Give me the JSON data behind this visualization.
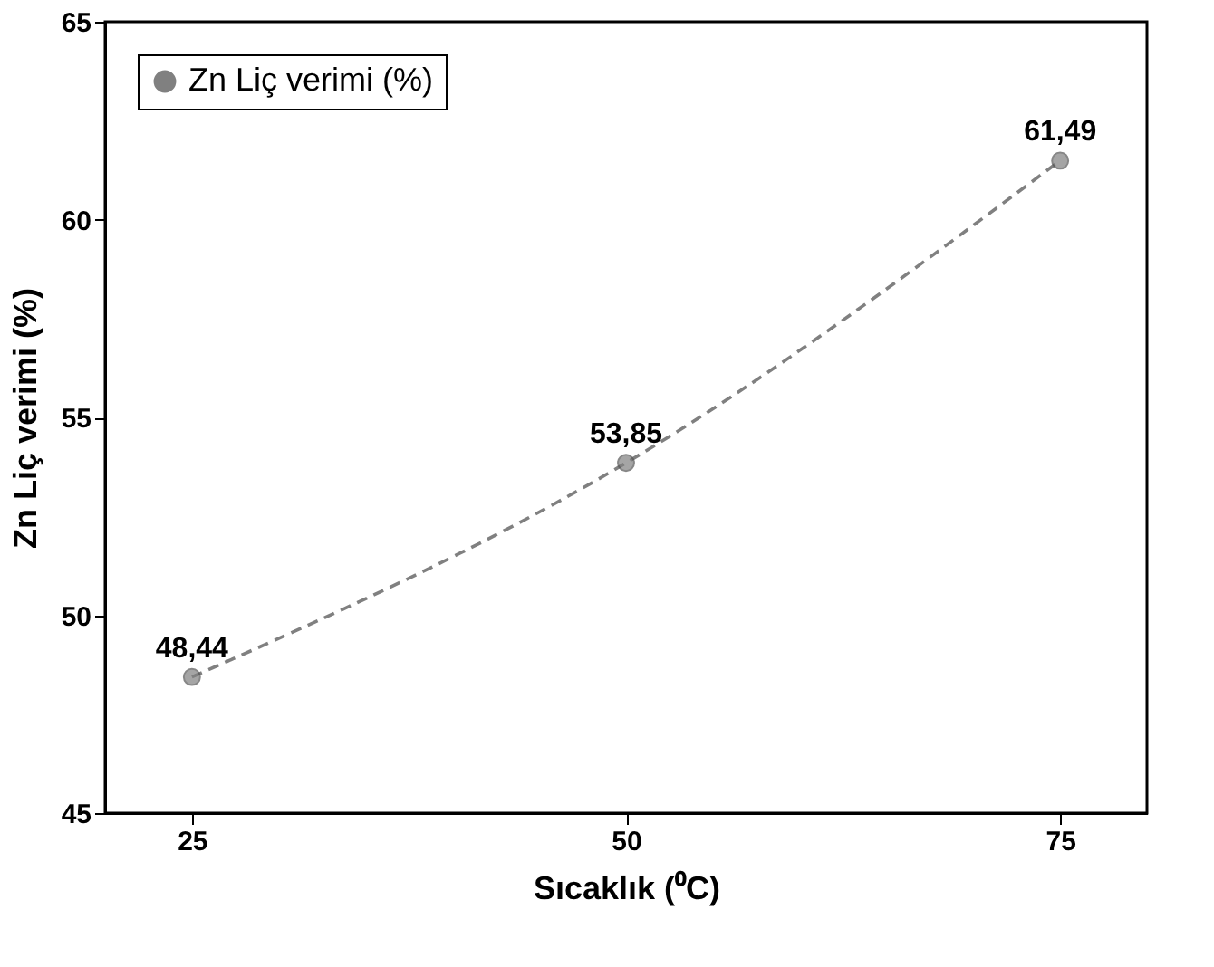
{
  "chart_data": {
    "type": "line",
    "xlabel": "Sıcaklık (⁰C)",
    "ylabel": "Zn Liç verimi (%)",
    "x": [
      25,
      50,
      75
    ],
    "series": [
      {
        "name": "Zn Liç verimi (%)",
        "color": "#808080",
        "values": [
          48.44,
          53.85,
          61.49
        ],
        "value_labels": [
          "48,44",
          "53,85",
          "61,49"
        ]
      }
    ],
    "xlim": [
      20,
      80
    ],
    "xticks": [
      25,
      50,
      75
    ],
    "ylim": [
      45,
      65
    ],
    "yticks": [
      45,
      50,
      55,
      60,
      65
    ],
    "grid": false,
    "legend": "top left",
    "marker": "circle",
    "line_style": "dashed"
  }
}
